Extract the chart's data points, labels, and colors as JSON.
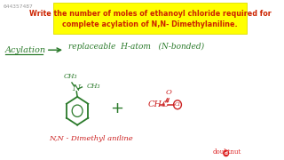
{
  "bg_color": "#ffffff",
  "title_text": "Write the number of moles of ethanoyl chloride required for\ncomplete acylation of N,N- Dimethylaniline.",
  "title_highlight": "#ffff00",
  "title_color": "#cc2200",
  "title_fontsize": 5.8,
  "watermark": "644357487",
  "watermark_color": "#999999",
  "watermark_fontsize": 4.5,
  "acylation_label": "Acylation",
  "green": "#2a7a2a",
  "red": "#cc2222",
  "replaceable_text": "replaceable  H-atom   (N-bonded)",
  "nn_label": "N,N - Dimethyl aniline",
  "logo_color": "#dd2222"
}
